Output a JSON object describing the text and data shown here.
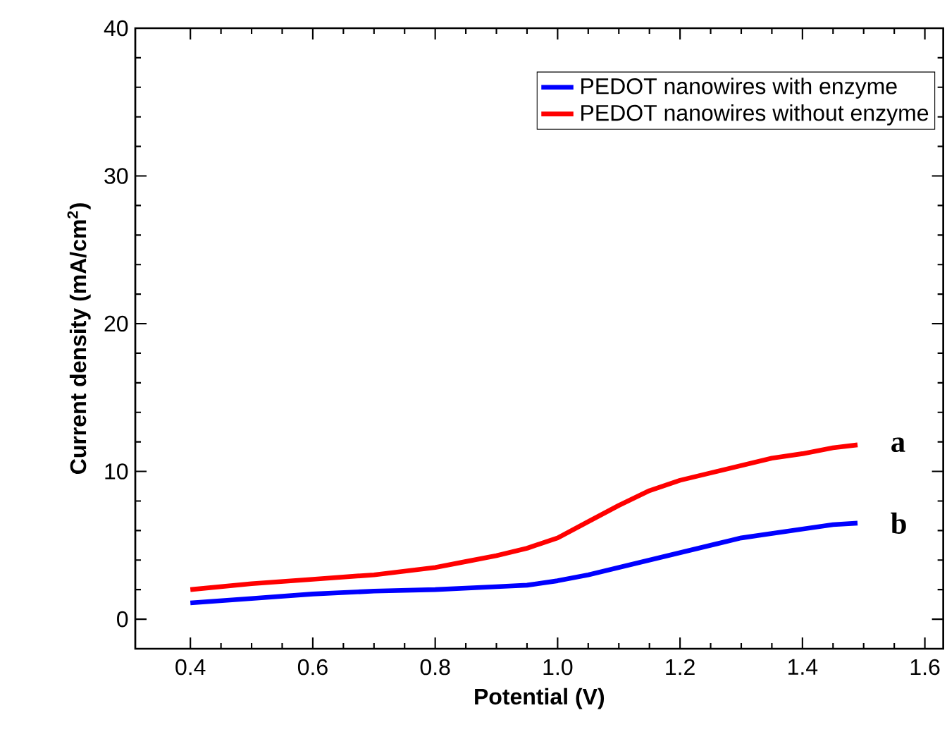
{
  "chart_data": {
    "type": "line",
    "xlabel": "Potential (V)",
    "ylabel": "Current density (mA/cm$^{2}$)",
    "xlim": [
      0.31,
      1.63
    ],
    "ylim": [
      -2,
      40
    ],
    "xticks": [
      0.4,
      0.6,
      0.8,
      {
        "value": 1,
        "label": "1.0"
      },
      1.2,
      1.4,
      1.6
    ],
    "yticks": [
      0,
      10,
      20,
      30,
      40
    ],
    "legend": "top right",
    "grid": false,
    "series": [
      {
        "name": "PEDOT nanowires with enzyme",
        "color": "#0000ff",
        "x": [
          0.4,
          0.5,
          0.6,
          0.7,
          0.8,
          0.9,
          0.95,
          1.0,
          1.05,
          1.1,
          1.15,
          1.2,
          1.25,
          1.3,
          1.35,
          1.4,
          1.45,
          1.49
        ],
        "values": [
          1.1,
          1.4,
          1.7,
          1.9,
          2.0,
          2.2,
          2.3,
          2.6,
          3.0,
          3.5,
          4.0,
          4.5,
          5.0,
          5.5,
          5.8,
          6.1,
          6.4,
          6.5
        ]
      },
      {
        "name": "PEDOT nanowires without enzyme",
        "color": "#ff0000",
        "x": [
          0.4,
          0.5,
          0.6,
          0.7,
          0.8,
          0.85,
          0.9,
          0.95,
          1.0,
          1.05,
          1.1,
          1.15,
          1.2,
          1.25,
          1.3,
          1.35,
          1.4,
          1.45,
          1.49
        ],
        "values": [
          2.0,
          2.4,
          2.7,
          3.0,
          3.5,
          3.9,
          4.3,
          4.8,
          5.5,
          6.6,
          7.7,
          8.7,
          9.4,
          9.9,
          10.4,
          10.9,
          11.2,
          11.6,
          11.8
        ]
      }
    ],
    "annotations": [
      {
        "text": "a",
        "x": 1.49,
        "y": 11.8
      },
      {
        "text": "b",
        "x": 1.49,
        "y": 6.5
      }
    ]
  }
}
